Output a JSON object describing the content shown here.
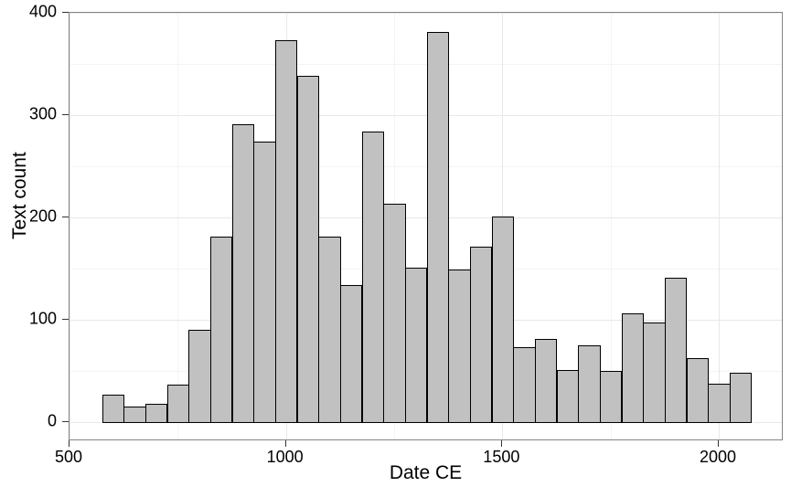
{
  "chart_data": {
    "type": "bar",
    "subtype": "histogram",
    "title": "",
    "xlabel": "Date CE",
    "ylabel": "Text count",
    "bin_start": 575,
    "bin_width": 50,
    "counts": [
      27,
      15,
      18,
      36,
      90,
      181,
      291,
      274,
      373,
      338,
      181,
      134,
      284,
      213,
      151,
      381,
      149,
      171,
      201,
      73,
      81,
      51,
      75,
      50,
      106,
      97,
      141,
      62,
      37,
      48
    ],
    "bins": [
      {
        "start": 575,
        "end": 625,
        "count": 27
      },
      {
        "start": 625,
        "end": 675,
        "count": 15
      },
      {
        "start": 675,
        "end": 725,
        "count": 18
      },
      {
        "start": 725,
        "end": 775,
        "count": 36
      },
      {
        "start": 775,
        "end": 825,
        "count": 90
      },
      {
        "start": 825,
        "end": 875,
        "count": 181
      },
      {
        "start": 875,
        "end": 925,
        "count": 291
      },
      {
        "start": 925,
        "end": 975,
        "count": 274
      },
      {
        "start": 975,
        "end": 1025,
        "count": 373
      },
      {
        "start": 1025,
        "end": 1075,
        "count": 338
      },
      {
        "start": 1075,
        "end": 1125,
        "count": 181
      },
      {
        "start": 1125,
        "end": 1175,
        "count": 134
      },
      {
        "start": 1175,
        "end": 1225,
        "count": 284
      },
      {
        "start": 1225,
        "end": 1275,
        "count": 213
      },
      {
        "start": 1275,
        "end": 1325,
        "count": 151
      },
      {
        "start": 1325,
        "end": 1375,
        "count": 381
      },
      {
        "start": 1375,
        "end": 1425,
        "count": 149
      },
      {
        "start": 1425,
        "end": 1475,
        "count": 171
      },
      {
        "start": 1475,
        "end": 1525,
        "count": 201
      },
      {
        "start": 1525,
        "end": 1575,
        "count": 73
      },
      {
        "start": 1575,
        "end": 1625,
        "count": 81
      },
      {
        "start": 1625,
        "end": 1675,
        "count": 51
      },
      {
        "start": 1675,
        "end": 1725,
        "count": 75
      },
      {
        "start": 1725,
        "end": 1775,
        "count": 50
      },
      {
        "start": 1775,
        "end": 1825,
        "count": 106
      },
      {
        "start": 1825,
        "end": 1875,
        "count": 97
      },
      {
        "start": 1875,
        "end": 1925,
        "count": 141
      },
      {
        "start": 1925,
        "end": 1975,
        "count": 62
      },
      {
        "start": 1975,
        "end": 2025,
        "count": 37
      },
      {
        "start": 2025,
        "end": 2075,
        "count": 48
      }
    ],
    "x_ticks": [
      500,
      1000,
      1500,
      2000
    ],
    "y_ticks": [
      0,
      100,
      200,
      300,
      400
    ],
    "x_minor_gridlines": [
      750,
      1250,
      1750
    ],
    "y_minor_gridlines": [
      50,
      150,
      250,
      350
    ],
    "xlim": [
      500,
      2150
    ],
    "ylim": [
      -19,
      400
    ],
    "grid": true,
    "legend": "none",
    "colors": {
      "bar_fill": "#c1c1c1",
      "bar_border": "#000000",
      "panel_border": "#848484",
      "grid_major": "#e8e8e8",
      "grid_minor": "#f4f4f4",
      "tick": "#333333",
      "text": "#000000",
      "background": "#ffffff"
    }
  }
}
